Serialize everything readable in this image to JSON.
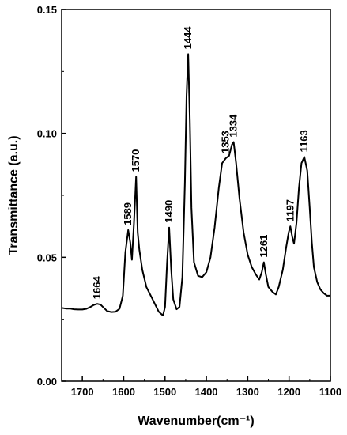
{
  "chart_data": {
    "type": "line",
    "xlabel": "Wavenumber(cm⁻¹)",
    "ylabel": "Transmittance (a.u.)",
    "xlim": [
      1750,
      1100
    ],
    "ylim": [
      0.0,
      0.15
    ],
    "x_ticks": [
      1700,
      1600,
      1500,
      1400,
      1300,
      1200,
      1100
    ],
    "x_tick_labels": [
      "1700",
      "1600",
      "1500",
      "1400",
      "1300",
      "1200",
      "1100"
    ],
    "y_ticks": [
      0.0,
      0.05,
      0.1,
      0.15
    ],
    "y_tick_labels": [
      "0.00",
      "0.05",
      "0.10",
      "0.15"
    ],
    "grid": false,
    "series": [
      {
        "points": [
          [
            1750,
            0.0296
          ],
          [
            1740,
            0.0293
          ],
          [
            1730,
            0.0293
          ],
          [
            1720,
            0.029
          ],
          [
            1710,
            0.0289
          ],
          [
            1700,
            0.0289
          ],
          [
            1690,
            0.0292
          ],
          [
            1680,
            0.03
          ],
          [
            1672,
            0.0308
          ],
          [
            1664,
            0.0312
          ],
          [
            1656,
            0.0309
          ],
          [
            1648,
            0.0296
          ],
          [
            1640,
            0.0283
          ],
          [
            1630,
            0.0279
          ],
          [
            1620,
            0.028
          ],
          [
            1610,
            0.0292
          ],
          [
            1602,
            0.0345
          ],
          [
            1596,
            0.052
          ],
          [
            1589,
            0.061
          ],
          [
            1584,
            0.056
          ],
          [
            1580,
            0.049
          ],
          [
            1575,
            0.064
          ],
          [
            1570,
            0.0825
          ],
          [
            1566,
            0.06
          ],
          [
            1562,
            0.053
          ],
          [
            1555,
            0.045
          ],
          [
            1545,
            0.038
          ],
          [
            1530,
            0.033
          ],
          [
            1515,
            0.028
          ],
          [
            1505,
            0.0265
          ],
          [
            1500,
            0.03
          ],
          [
            1495,
            0.048
          ],
          [
            1490,
            0.062
          ],
          [
            1485,
            0.045
          ],
          [
            1480,
            0.033
          ],
          [
            1472,
            0.029
          ],
          [
            1465,
            0.03
          ],
          [
            1458,
            0.042
          ],
          [
            1452,
            0.08
          ],
          [
            1448,
            0.115
          ],
          [
            1444,
            0.132
          ],
          [
            1440,
            0.105
          ],
          [
            1436,
            0.07
          ],
          [
            1430,
            0.048
          ],
          [
            1420,
            0.0425
          ],
          [
            1410,
            0.042
          ],
          [
            1400,
            0.044
          ],
          [
            1390,
            0.05
          ],
          [
            1380,
            0.062
          ],
          [
            1370,
            0.078
          ],
          [
            1362,
            0.088
          ],
          [
            1353,
            0.09
          ],
          [
            1345,
            0.091
          ],
          [
            1338,
            0.0955
          ],
          [
            1334,
            0.0965
          ],
          [
            1328,
            0.088
          ],
          [
            1320,
            0.074
          ],
          [
            1310,
            0.06
          ],
          [
            1300,
            0.051
          ],
          [
            1290,
            0.046
          ],
          [
            1280,
            0.043
          ],
          [
            1272,
            0.041
          ],
          [
            1266,
            0.044
          ],
          [
            1261,
            0.048
          ],
          [
            1256,
            0.043
          ],
          [
            1250,
            0.038
          ],
          [
            1240,
            0.036
          ],
          [
            1232,
            0.035
          ],
          [
            1225,
            0.038
          ],
          [
            1215,
            0.045
          ],
          [
            1207,
            0.054
          ],
          [
            1201,
            0.06
          ],
          [
            1197,
            0.0625
          ],
          [
            1192,
            0.058
          ],
          [
            1188,
            0.0555
          ],
          [
            1182,
            0.064
          ],
          [
            1176,
            0.078
          ],
          [
            1170,
            0.088
          ],
          [
            1163,
            0.0905
          ],
          [
            1156,
            0.085
          ],
          [
            1150,
            0.07
          ],
          [
            1145,
            0.056
          ],
          [
            1140,
            0.046
          ],
          [
            1132,
            0.04
          ],
          [
            1124,
            0.037
          ],
          [
            1116,
            0.0355
          ],
          [
            1108,
            0.0345
          ],
          [
            1100,
            0.0345
          ]
        ]
      }
    ],
    "peak_labels": [
      {
        "x": 1664,
        "y": 0.0312,
        "text": "1664"
      },
      {
        "x": 1589,
        "y": 0.061,
        "text": "1589"
      },
      {
        "x": 1570,
        "y": 0.0825,
        "text": "1570"
      },
      {
        "x": 1490,
        "y": 0.062,
        "text": "1490"
      },
      {
        "x": 1444,
        "y": 0.132,
        "text": "1444"
      },
      {
        "x": 1353,
        "y": 0.09,
        "text": "1353"
      },
      {
        "x": 1334,
        "y": 0.0965,
        "text": "1334"
      },
      {
        "x": 1261,
        "y": 0.048,
        "text": "1261"
      },
      {
        "x": 1197,
        "y": 0.0625,
        "text": "1197"
      },
      {
        "x": 1163,
        "y": 0.0905,
        "text": "1163"
      }
    ],
    "line_color": "#000000"
  }
}
